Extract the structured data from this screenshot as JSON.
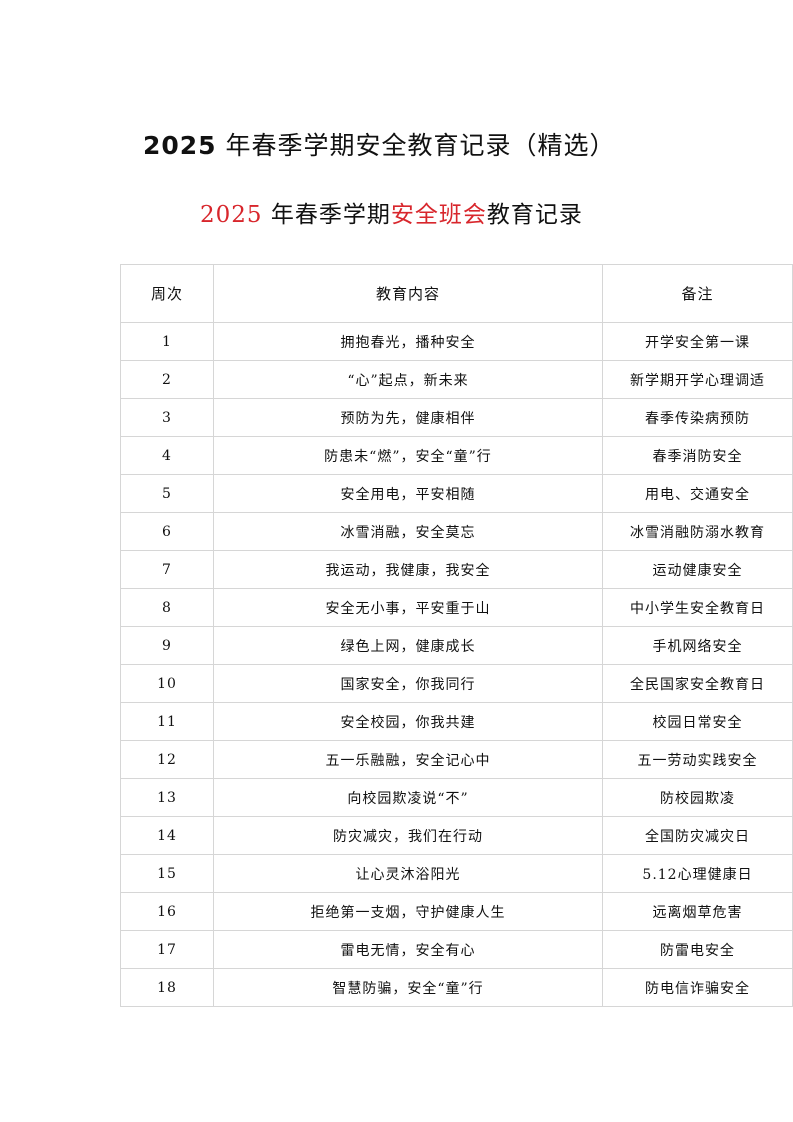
{
  "title": {
    "year": "2025",
    "text": " 年春季学期安全教育记录（精选）"
  },
  "subtitle": {
    "year": "2025",
    "part1": " 年春季学期",
    "highlight": "安全班会",
    "part2": "教育记录",
    "highlight_color": "#d8262c"
  },
  "table": {
    "headers": [
      "周次",
      "教育内容",
      "备注"
    ],
    "rows": [
      [
        "1",
        "拥抱春光，播种安全",
        "开学安全第一课"
      ],
      [
        "2",
        "“心”起点，新未来",
        "新学期开学心理调适"
      ],
      [
        "3",
        "预防为先，健康相伴",
        "春季传染病预防"
      ],
      [
        "4",
        "防患未“燃”，安全“童”行",
        "春季消防安全"
      ],
      [
        "5",
        "安全用电，平安相随",
        "用电、交通安全"
      ],
      [
        "6",
        "冰雪消融，安全莫忘",
        "冰雪消融防溺水教育"
      ],
      [
        "7",
        "我运动，我健康，我安全",
        "运动健康安全"
      ],
      [
        "8",
        "安全无小事，平安重于山",
        "中小学生安全教育日"
      ],
      [
        "9",
        "绿色上网，健康成长",
        "手机网络安全"
      ],
      [
        "10",
        "国家安全，你我同行",
        "全民国家安全教育日"
      ],
      [
        "11",
        "安全校园，你我共建",
        "校园日常安全"
      ],
      [
        "12",
        "五一乐融融，安全记心中",
        "五一劳动实践安全"
      ],
      [
        "13",
        "向校园欺凌说“不”",
        "防校园欺凌"
      ],
      [
        "14",
        "防灾减灾，我们在行动",
        "全国防灾减灾日"
      ],
      [
        "15",
        "让心灵沐浴阳光",
        "5.12心理健康日"
      ],
      [
        "16",
        "拒绝第一支烟，守护健康人生",
        "远离烟草危害"
      ],
      [
        "17",
        "雷电无情，安全有心",
        "防雷电安全"
      ],
      [
        "18",
        "智慧防骗，安全“童”行",
        "防电信诈骗安全"
      ]
    ]
  }
}
